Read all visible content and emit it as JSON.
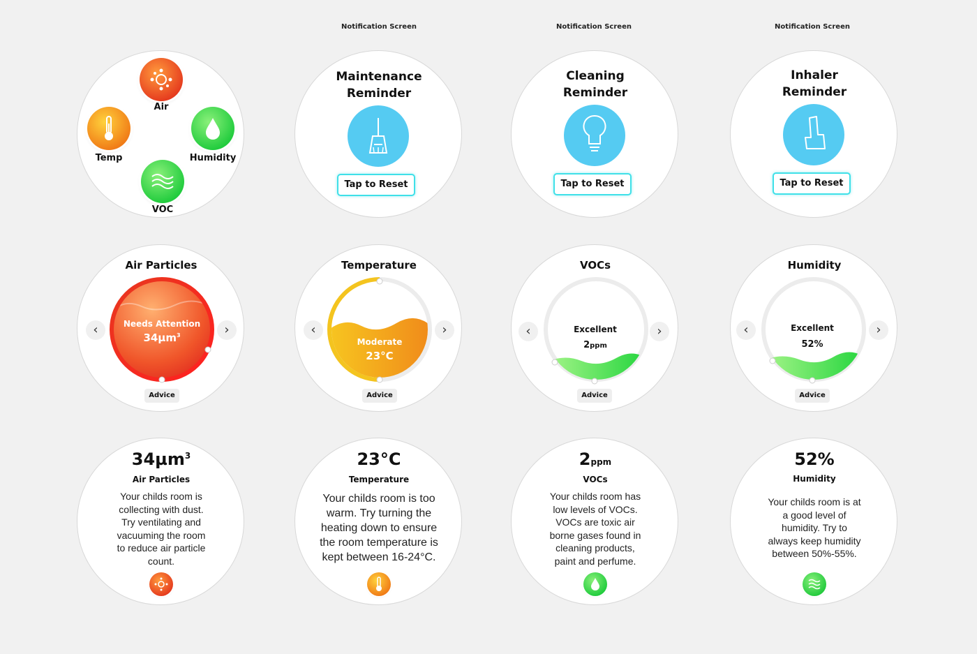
{
  "captions": [
    "Notification Screen",
    "Notification Screen",
    "Notification Screen"
  ],
  "home": {
    "air": "Air",
    "temp": "Temp",
    "humidity": "Humidity",
    "voc": "VOC",
    "icons": [
      "sensor-dots-icon",
      "thermometer-icon",
      "droplet-icon",
      "waves-icon"
    ]
  },
  "reminders": [
    {
      "title_line1": "Maintenance",
      "title_line2": "Reminder",
      "icon": "broom-icon",
      "button": "Tap to Reset"
    },
    {
      "title_line1": "Cleaning",
      "title_line2": "Reminder",
      "icon": "lightbulb-icon",
      "button": "Tap to Reset"
    },
    {
      "title_line1": "Inhaler",
      "title_line2": "Reminder",
      "icon": "inhaler-icon",
      "button": "Tap to Reset"
    }
  ],
  "gauges": [
    {
      "title": "Air Particles",
      "status": "Needs Attention",
      "value": "34µm",
      "value_sup": "3",
      "advice": "Advice",
      "level": 0.82,
      "color": "#e8381f"
    },
    {
      "title": "Temperature",
      "status": "Moderate",
      "value": "23°C",
      "advice": "Advice",
      "level": 0.55,
      "color": "#f2a218"
    },
    {
      "title": "VOCs",
      "status": "Excellent",
      "value": "2",
      "value_unit": "ppm",
      "advice": "Advice",
      "level": 0.18,
      "color": "#2fd84a"
    },
    {
      "title": "Humidity",
      "status": "Excellent",
      "value": "52%",
      "advice": "Advice",
      "level": 0.18,
      "color": "#2fd84a"
    }
  ],
  "details": [
    {
      "value": "34µm",
      "value_sup": "3",
      "name": "Air Particles",
      "lines": [
        "Your childs room is",
        "collecting with dust.",
        "Try ventilating and",
        "vacuuming the room",
        "to reduce air particle",
        "count."
      ],
      "icon": "sensor-dots-icon"
    },
    {
      "value": "23°C",
      "name": "Temperature",
      "lines": [
        "Your childs room is too",
        "warm. Try turning the",
        "heating down to ensure",
        "the room temperature is",
        "kept between 16-24°C."
      ],
      "icon": "thermometer-icon"
    },
    {
      "value": "2",
      "value_unit": "ppm",
      "name": "VOCs",
      "lines": [
        "Your childs room has",
        "low levels of VOCs.",
        "VOCs are toxic air",
        "borne gases found in",
        "cleaning products,",
        "paint and perfume."
      ],
      "icon": "droplet-icon"
    },
    {
      "value": "52%",
      "name": "Humidity",
      "lines": [
        "Your childs room is at",
        "a good level of",
        "humidity. Try to",
        "always keep humidity",
        "between 50%-55%."
      ],
      "icon": "waves-icon"
    }
  ]
}
